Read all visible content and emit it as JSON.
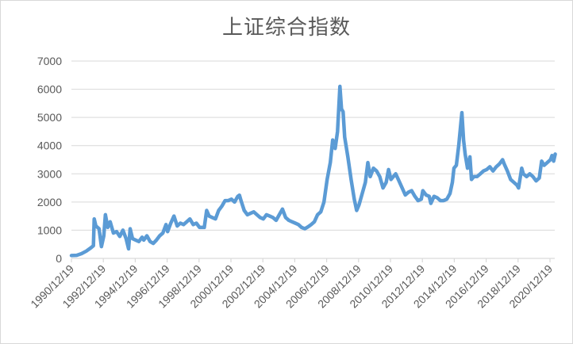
{
  "chart_data": {
    "type": "line",
    "title": "上证综合指数",
    "xlabel": "",
    "ylabel": "",
    "ylim": [
      0,
      7000
    ],
    "y_ticks": [
      0,
      1000,
      2000,
      3000,
      4000,
      5000,
      6000,
      7000
    ],
    "x_tick_labels": [
      "1990/12/19",
      "1992/12/19",
      "1994/12/19",
      "1996/12/19",
      "1998/12/19",
      "2000/12/19",
      "2002/12/19",
      "2004/12/19",
      "2006/12/19",
      "2008/12/19",
      "2010/12/19",
      "2012/12/19",
      "2014/12/19",
      "2016/12/19",
      "2018/12/19",
      "2020/12/19"
    ],
    "grid": "horizontal",
    "legend": "none",
    "line_color": "#5B9BD5",
    "series": [
      {
        "name": "上证综合指数",
        "points": [
          [
            1990.97,
            100
          ],
          [
            1991.3,
            110
          ],
          [
            1991.6,
            170
          ],
          [
            1991.9,
            260
          ],
          [
            1992.2,
            380
          ],
          [
            1992.35,
            450
          ],
          [
            1992.4,
            1400
          ],
          [
            1992.5,
            1150
          ],
          [
            1992.7,
            1050
          ],
          [
            1992.85,
            420
          ],
          [
            1993.0,
            800
          ],
          [
            1993.1,
            1550
          ],
          [
            1993.25,
            1100
          ],
          [
            1993.4,
            1300
          ],
          [
            1993.6,
            900
          ],
          [
            1993.8,
            950
          ],
          [
            1994.0,
            780
          ],
          [
            1994.2,
            1000
          ],
          [
            1994.4,
            700
          ],
          [
            1994.55,
            340
          ],
          [
            1994.65,
            1050
          ],
          [
            1994.8,
            700
          ],
          [
            1995.0,
            650
          ],
          [
            1995.2,
            600
          ],
          [
            1995.4,
            750
          ],
          [
            1995.5,
            650
          ],
          [
            1995.7,
            800
          ],
          [
            1995.9,
            600
          ],
          [
            1996.1,
            530
          ],
          [
            1996.3,
            650
          ],
          [
            1996.5,
            800
          ],
          [
            1996.7,
            900
          ],
          [
            1996.9,
            1200
          ],
          [
            1997.0,
            950
          ],
          [
            1997.2,
            1250
          ],
          [
            1997.4,
            1500
          ],
          [
            1997.6,
            1150
          ],
          [
            1997.8,
            1250
          ],
          [
            1998.0,
            1200
          ],
          [
            1998.2,
            1300
          ],
          [
            1998.4,
            1400
          ],
          [
            1998.6,
            1200
          ],
          [
            1998.8,
            1250
          ],
          [
            1999.0,
            1100
          ],
          [
            1999.3,
            1100
          ],
          [
            1999.45,
            1700
          ],
          [
            1999.6,
            1500
          ],
          [
            1999.8,
            1450
          ],
          [
            2000.0,
            1400
          ],
          [
            2000.2,
            1700
          ],
          [
            2000.4,
            1850
          ],
          [
            2000.6,
            2050
          ],
          [
            2000.8,
            2050
          ],
          [
            2001.0,
            2100
          ],
          [
            2001.2,
            2000
          ],
          [
            2001.4,
            2200
          ],
          [
            2001.5,
            2240
          ],
          [
            2001.6,
            2050
          ],
          [
            2001.8,
            1700
          ],
          [
            2002.0,
            1550
          ],
          [
            2002.2,
            1600
          ],
          [
            2002.4,
            1650
          ],
          [
            2002.6,
            1550
          ],
          [
            2002.8,
            1450
          ],
          [
            2003.0,
            1400
          ],
          [
            2003.2,
            1550
          ],
          [
            2003.4,
            1500
          ],
          [
            2003.6,
            1450
          ],
          [
            2003.8,
            1350
          ],
          [
            2004.0,
            1550
          ],
          [
            2004.2,
            1750
          ],
          [
            2004.4,
            1450
          ],
          [
            2004.6,
            1350
          ],
          [
            2004.8,
            1300
          ],
          [
            2005.0,
            1250
          ],
          [
            2005.2,
            1200
          ],
          [
            2005.4,
            1100
          ],
          [
            2005.6,
            1050
          ],
          [
            2005.8,
            1120
          ],
          [
            2006.0,
            1200
          ],
          [
            2006.2,
            1300
          ],
          [
            2006.4,
            1550
          ],
          [
            2006.6,
            1650
          ],
          [
            2006.8,
            2000
          ],
          [
            2007.0,
            2800
          ],
          [
            2007.2,
            3400
          ],
          [
            2007.35,
            4200
          ],
          [
            2007.5,
            3900
          ],
          [
            2007.65,
            4500
          ],
          [
            2007.8,
            6100
          ],
          [
            2007.9,
            5300
          ],
          [
            2008.0,
            5200
          ],
          [
            2008.1,
            4300
          ],
          [
            2008.3,
            3600
          ],
          [
            2008.5,
            2800
          ],
          [
            2008.7,
            2100
          ],
          [
            2008.85,
            1700
          ],
          [
            2009.0,
            1900
          ],
          [
            2009.2,
            2300
          ],
          [
            2009.4,
            2700
          ],
          [
            2009.55,
            3400
          ],
          [
            2009.7,
            2900
          ],
          [
            2009.9,
            3200
          ],
          [
            2010.1,
            3100
          ],
          [
            2010.3,
            2900
          ],
          [
            2010.5,
            2500
          ],
          [
            2010.7,
            2700
          ],
          [
            2010.85,
            3150
          ],
          [
            2011.0,
            2800
          ],
          [
            2011.3,
            3000
          ],
          [
            2011.5,
            2750
          ],
          [
            2011.7,
            2500
          ],
          [
            2011.9,
            2250
          ],
          [
            2012.1,
            2350
          ],
          [
            2012.3,
            2400
          ],
          [
            2012.5,
            2200
          ],
          [
            2012.7,
            2050
          ],
          [
            2012.9,
            2100
          ],
          [
            2013.0,
            2400
          ],
          [
            2013.2,
            2250
          ],
          [
            2013.4,
            2200
          ],
          [
            2013.5,
            1950
          ],
          [
            2013.7,
            2200
          ],
          [
            2013.9,
            2150
          ],
          [
            2014.1,
            2050
          ],
          [
            2014.3,
            2050
          ],
          [
            2014.5,
            2100
          ],
          [
            2014.7,
            2300
          ],
          [
            2014.85,
            2700
          ],
          [
            2014.95,
            3200
          ],
          [
            2015.1,
            3300
          ],
          [
            2015.25,
            4000
          ],
          [
            2015.45,
            5170
          ],
          [
            2015.55,
            4200
          ],
          [
            2015.65,
            3700
          ],
          [
            2015.8,
            3200
          ],
          [
            2015.95,
            3600
          ],
          [
            2016.05,
            2800
          ],
          [
            2016.2,
            2900
          ],
          [
            2016.4,
            2900
          ],
          [
            2016.6,
            3000
          ],
          [
            2016.8,
            3100
          ],
          [
            2017.0,
            3150
          ],
          [
            2017.2,
            3250
          ],
          [
            2017.4,
            3100
          ],
          [
            2017.6,
            3250
          ],
          [
            2017.8,
            3350
          ],
          [
            2018.0,
            3500
          ],
          [
            2018.1,
            3350
          ],
          [
            2018.3,
            3100
          ],
          [
            2018.5,
            2800
          ],
          [
            2018.7,
            2700
          ],
          [
            2018.9,
            2600
          ],
          [
            2019.0,
            2500
          ],
          [
            2019.2,
            3200
          ],
          [
            2019.3,
            3000
          ],
          [
            2019.5,
            2900
          ],
          [
            2019.7,
            3000
          ],
          [
            2019.9,
            2900
          ],
          [
            2020.1,
            2750
          ],
          [
            2020.3,
            2850
          ],
          [
            2020.45,
            3450
          ],
          [
            2020.6,
            3300
          ],
          [
            2020.8,
            3400
          ],
          [
            2021.0,
            3500
          ],
          [
            2021.1,
            3650
          ],
          [
            2021.2,
            3450
          ],
          [
            2021.3,
            3700
          ]
        ]
      }
    ]
  },
  "chart_meta": {
    "title": "上证综合指数"
  }
}
